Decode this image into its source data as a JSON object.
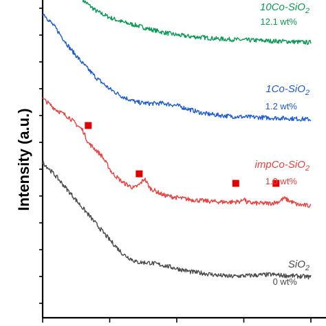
{
  "chart_data": {
    "type": "line",
    "title": "",
    "xlabel": "",
    "ylabel": "Intensity (a.u.)",
    "x_range": [
      0,
      100
    ],
    "ylim": [
      0,
      100
    ],
    "grid": false,
    "legend": "none",
    "series": [
      {
        "name": "10Co-SiO2",
        "name_main": "10Co-SiO",
        "name_sub": "2",
        "loading": "12.1 wt%",
        "color": "#0a9a55",
        "x": [
          15,
          20,
          25,
          30,
          35,
          40,
          45,
          50,
          55,
          60,
          65,
          70,
          75,
          80,
          85,
          90,
          95,
          100
        ],
        "y": [
          100,
          96.5,
          94.5,
          93,
          92,
          90.8,
          89.8,
          89,
          88.5,
          88.2,
          87.8,
          87.6,
          87.4,
          87.3,
          87.1,
          87.0,
          86.8,
          86.6
        ]
      },
      {
        "name": "1Co-SiO2",
        "name_main": "1Co-SiO",
        "name_sub": "2",
        "loading": "1.2 wt%",
        "color": "#1f5bd1",
        "x": [
          0,
          5,
          10,
          15,
          20,
          25,
          30,
          35,
          40,
          45,
          50,
          55,
          60,
          65,
          70,
          75,
          80,
          85,
          90,
          95,
          100
        ],
        "y": [
          96,
          91,
          85,
          80,
          75.5,
          72,
          69.5,
          67.8,
          67.4,
          67.5,
          66.8,
          65.5,
          64.3,
          63.8,
          63.4,
          63.2,
          63.1,
          62.9,
          62.8,
          62.6,
          62.4
        ]
      },
      {
        "name": "impCo-SiO2",
        "name_main": "impCo-SiO",
        "name_sub": "2",
        "loading": "1.0 wt%",
        "color": "#e8413f",
        "x": [
          0,
          5,
          10,
          13,
          15,
          17,
          19,
          22,
          26,
          30,
          34,
          36,
          38,
          40,
          45,
          50,
          55,
          60,
          65,
          70,
          74,
          75,
          76,
          80,
          85,
          88,
          90,
          92,
          95,
          100
        ],
        "y": [
          69,
          65.5,
          63,
          60.5,
          59,
          55,
          53.5,
          51,
          45.5,
          42.5,
          40.8,
          41.8,
          43.8,
          40.8,
          38.6,
          37.8,
          37.2,
          36.8,
          36.5,
          36.4,
          36.6,
          37.8,
          36.3,
          36.0,
          36.0,
          36.5,
          37.6,
          36.8,
          35.6,
          35.2
        ]
      },
      {
        "name": "SiO2",
        "name_main": "SiO",
        "name_sub": "2",
        "loading": "0 wt%",
        "color": "#4a4a4a",
        "x": [
          0,
          5,
          10,
          15,
          20,
          25,
          30,
          35,
          40,
          45,
          50,
          55,
          60,
          65,
          70,
          75,
          80,
          85,
          90,
          95,
          100
        ],
        "y": [
          49,
          44.5,
          39.5,
          34.5,
          29.5,
          24.5,
          20,
          17.5,
          17.3,
          16.5,
          15.5,
          14.5,
          14.0,
          13.4,
          13.0,
          13.2,
          13.4,
          13.6,
          13.3,
          13.1,
          12.8
        ]
      }
    ],
    "markers": {
      "symbol": "square",
      "color": "#e00000",
      "points": [
        {
          "x": 17,
          "y": 60.5
        },
        {
          "x": 36,
          "y": 45.3
        },
        {
          "x": 72,
          "y": 42.3
        },
        {
          "x": 87,
          "y": 42.3
        }
      ]
    }
  }
}
